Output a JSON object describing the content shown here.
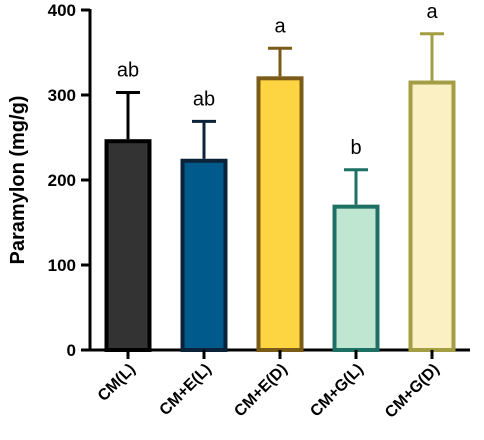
{
  "chart_data": {
    "type": "bar",
    "title": "",
    "xlabel": "",
    "ylabel": "Paramylon (mg/g)",
    "ylim": [
      0,
      400
    ],
    "yticks": [
      0,
      100,
      200,
      300,
      400
    ],
    "grid": false,
    "categories": [
      "CM(L)",
      "CM+E(L)",
      "CM+E(D)",
      "CM+G(L)",
      "CM+G(D)"
    ],
    "values": [
      248,
      225,
      322,
      171,
      317
    ],
    "errors": [
      55,
      44,
      33,
      41,
      55
    ],
    "significance": [
      "ab",
      "ab",
      "a",
      "b",
      "a"
    ],
    "fill_colors": [
      "#333333",
      "#005a8c",
      "#fdd441",
      "#bfe6d0",
      "#fbefc4"
    ],
    "edge_colors": [
      "#000000",
      "#0c2238",
      "#7a5c18",
      "#1e7064",
      "#a39d44"
    ]
  }
}
